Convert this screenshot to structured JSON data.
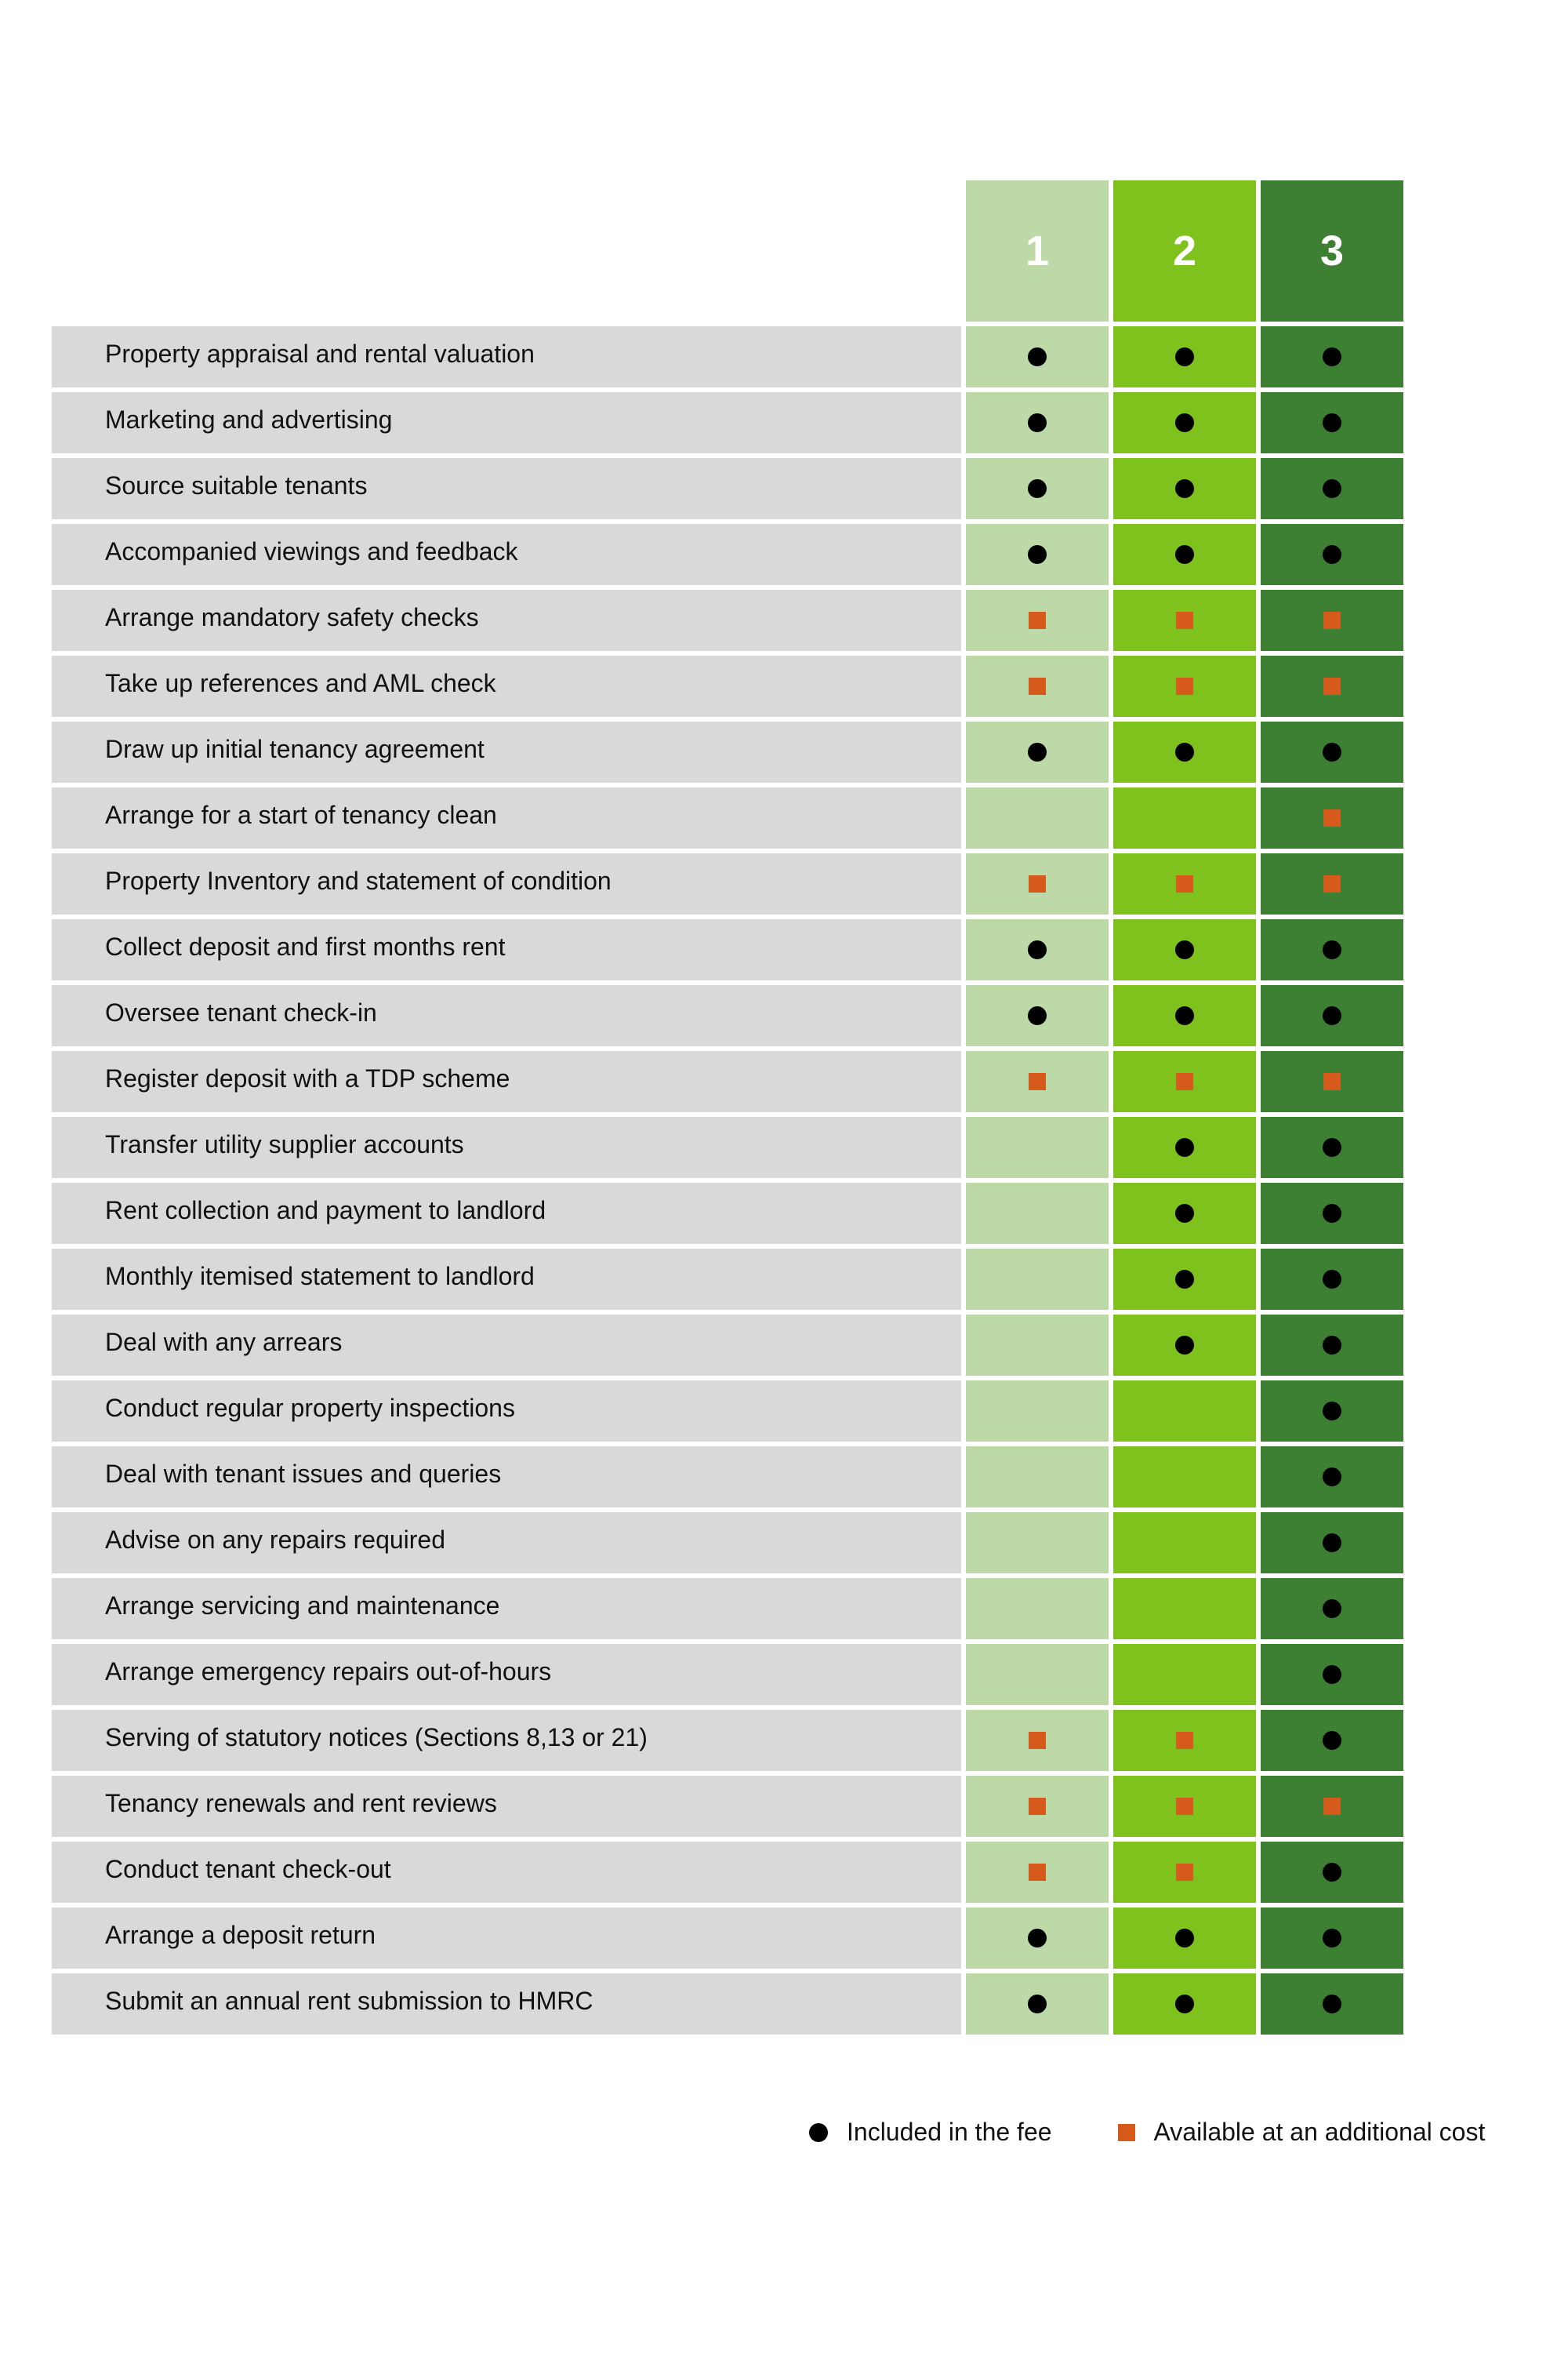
{
  "plans": [
    "1",
    "2",
    "3"
  ],
  "colors": {
    "plan_1": "#bdd9a8",
    "plan_2": "#80c21d",
    "plan_3": "#3e8033",
    "label_bg": "#d9d9d9",
    "included": "#000000",
    "additional": "#d65a1b"
  },
  "services": [
    {
      "label": "Property appraisal and rental valuation",
      "marks": [
        "dot",
        "dot",
        "dot"
      ]
    },
    {
      "label": "Marketing and advertising",
      "marks": [
        "dot",
        "dot",
        "dot"
      ]
    },
    {
      "label": "Source suitable tenants",
      "marks": [
        "dot",
        "dot",
        "dot"
      ]
    },
    {
      "label": "Accompanied viewings and feedback",
      "marks": [
        "dot",
        "dot",
        "dot"
      ]
    },
    {
      "label": "Arrange mandatory safety checks",
      "marks": [
        "square",
        "square",
        "square"
      ]
    },
    {
      "label": "Take up references and AML check",
      "marks": [
        "square",
        "square",
        "square"
      ]
    },
    {
      "label": "Draw up initial tenancy agreement",
      "marks": [
        "dot",
        "dot",
        "dot"
      ]
    },
    {
      "label": "Arrange for a start of tenancy clean",
      "marks": [
        "",
        "",
        "square"
      ]
    },
    {
      "label": "Property Inventory and statement of condition",
      "marks": [
        "square",
        "square",
        "square"
      ]
    },
    {
      "label": "Collect deposit and first months rent",
      "marks": [
        "dot",
        "dot",
        "dot"
      ]
    },
    {
      "label": "Oversee tenant check-in",
      "marks": [
        "dot",
        "dot",
        "dot"
      ]
    },
    {
      "label": "Register deposit with a TDP scheme",
      "marks": [
        "square",
        "square",
        "square"
      ]
    },
    {
      "label": "Transfer utility supplier accounts",
      "marks": [
        "",
        "dot",
        "dot"
      ]
    },
    {
      "label": "Rent collection and payment to landlord",
      "marks": [
        "",
        "dot",
        "dot"
      ]
    },
    {
      "label": "Monthly itemised statement to landlord",
      "marks": [
        "",
        "dot",
        "dot"
      ]
    },
    {
      "label": "Deal with any arrears",
      "marks": [
        "",
        "dot",
        "dot"
      ]
    },
    {
      "label": "Conduct regular property inspections",
      "marks": [
        "",
        "",
        "dot"
      ]
    },
    {
      "label": "Deal with tenant issues and queries",
      "marks": [
        "",
        "",
        "dot"
      ]
    },
    {
      "label": "Advise on any repairs required",
      "marks": [
        "",
        "",
        "dot"
      ]
    },
    {
      "label": "Arrange servicing and maintenance",
      "marks": [
        "",
        "",
        "dot"
      ]
    },
    {
      "label": "Arrange emergency repairs out-of-hours",
      "marks": [
        "",
        "",
        "dot"
      ]
    },
    {
      "label": "Serving of statutory notices (Sections 8,13 or 21)",
      "marks": [
        "square",
        "square",
        "dot"
      ]
    },
    {
      "label": "Tenancy renewals and rent reviews",
      "marks": [
        "square",
        "square",
        "square"
      ]
    },
    {
      "label": "Conduct tenant check-out",
      "marks": [
        "square",
        "square",
        "dot"
      ]
    },
    {
      "label": "Arrange a deposit return",
      "marks": [
        "dot",
        "dot",
        "dot"
      ]
    },
    {
      "label": "Submit an annual rent submission to HMRC",
      "marks": [
        "dot",
        "dot",
        "dot"
      ]
    }
  ],
  "legend": {
    "included": "Included in the fee",
    "additional": "Available at an additional cost"
  }
}
